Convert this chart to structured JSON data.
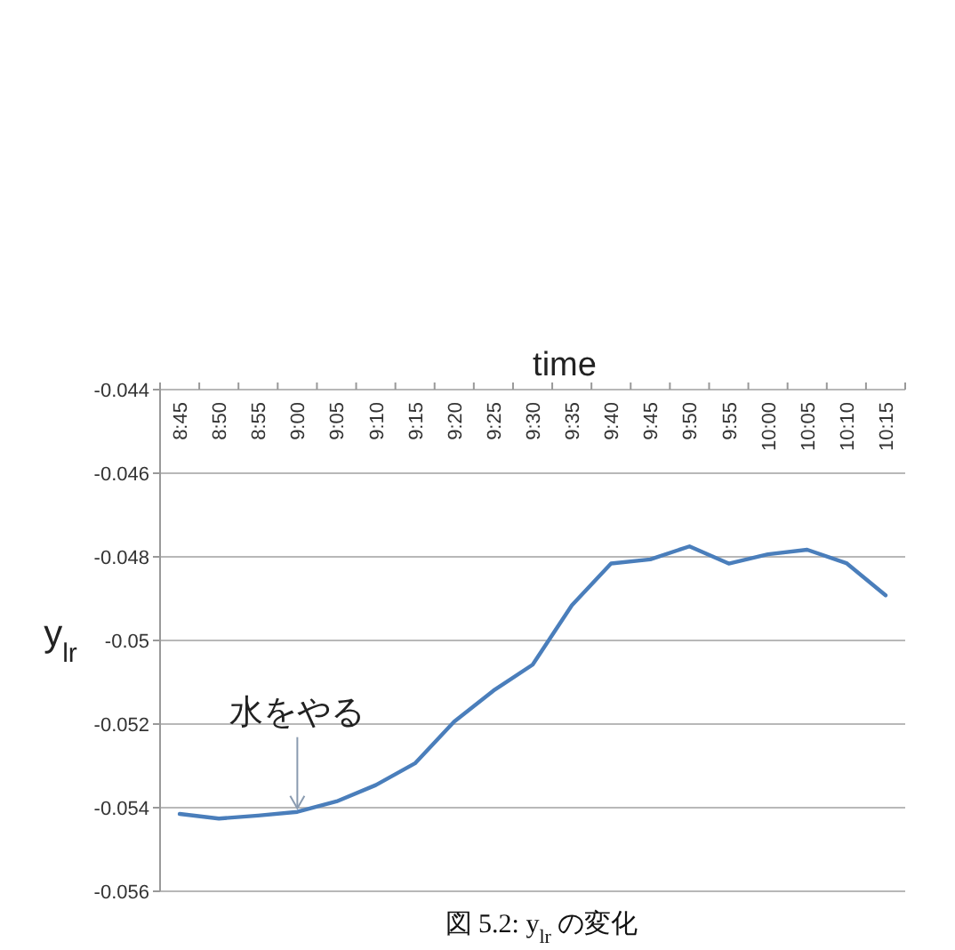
{
  "chart_data": {
    "type": "line",
    "xlabel": "time",
    "ylabel": "y$_{lr}$",
    "categories": [
      "8:45",
      "8:50",
      "8:55",
      "9:00",
      "9:05",
      "9:10",
      "9:15",
      "9:20",
      "9:25",
      "9:30",
      "9:35",
      "9:40",
      "9:45",
      "9:50",
      "9:55",
      "10:00",
      "10:05",
      "10:10",
      "10:15"
    ],
    "series": [
      {
        "color": "#4a7ebb",
        "values": [
          -0.05415,
          -0.05426,
          -0.05419,
          -0.0541,
          -0.05385,
          -0.05346,
          -0.05294,
          -0.05194,
          -0.0512,
          -0.05058,
          -0.04916,
          -0.04816,
          -0.04806,
          -0.04775,
          -0.04816,
          -0.04794,
          -0.04783,
          -0.04815,
          -0.04892
        ]
      }
    ],
    "ylim": [
      -0.056,
      -0.044
    ],
    "yticks": [
      -0.056,
      -0.054,
      -0.052,
      -0.05,
      -0.048,
      -0.046,
      -0.044
    ],
    "grid": "y",
    "line_style": "solid",
    "marker": "none",
    "annotations": [
      {
        "text": "水をやる",
        "x": "9:00",
        "y": -0.0541
      },
      "図 5.2: y$_{lr}$ の変化"
    ]
  }
}
